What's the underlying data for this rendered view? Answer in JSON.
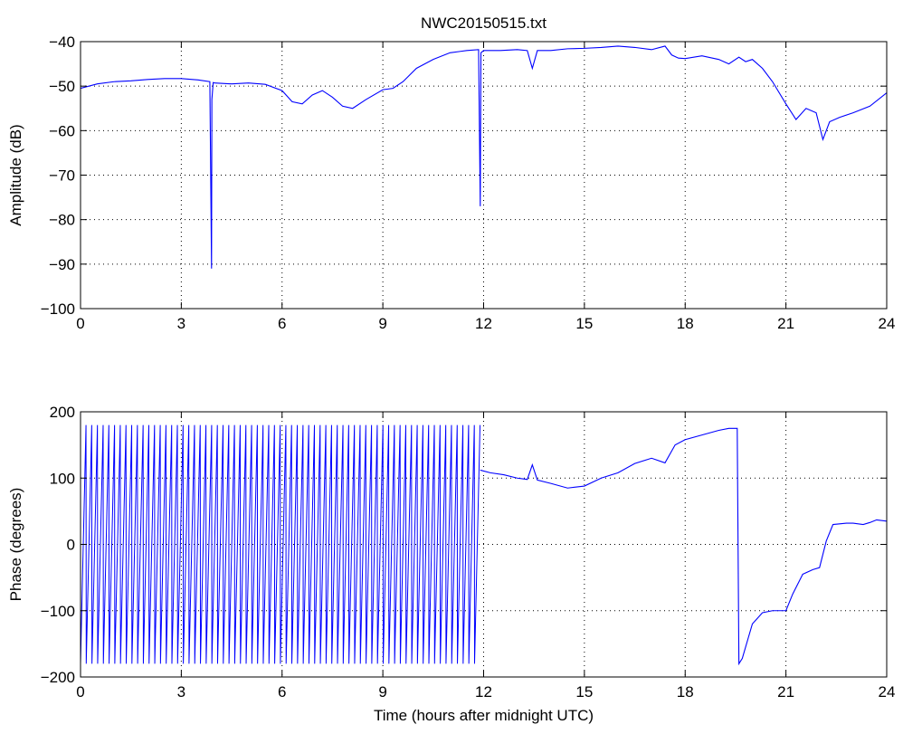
{
  "chart_data": [
    {
      "type": "line",
      "title": "NWC20150515.txt",
      "xlabel": "",
      "ylabel": "Amplitude (dB)",
      "xlim": [
        0,
        24
      ],
      "ylim": [
        -100,
        -40
      ],
      "xticks": [
        0,
        3,
        6,
        9,
        12,
        15,
        18,
        21,
        24
      ],
      "xtick_labels": [
        "0",
        "3",
        "6",
        "9",
        "12",
        "15",
        "18",
        "21",
        "24"
      ],
      "yticks": [
        -100,
        -90,
        -80,
        -70,
        -60,
        -50,
        -40
      ],
      "ytick_labels": [
        "−100",
        "−90",
        "−80",
        "−70",
        "−60",
        "−50",
        "−40"
      ],
      "grid": true,
      "series": [
        {
          "color": "#0000ff",
          "x": [
            0,
            0.5,
            1,
            1.5,
            2,
            2.5,
            3,
            3.5,
            3.85,
            3.9,
            3.91,
            3.95,
            4,
            4.5,
            5,
            5.5,
            6,
            6.3,
            6.6,
            6.9,
            7.2,
            7.5,
            7.8,
            8.1,
            8.5,
            9,
            9.3,
            9.6,
            10,
            10.5,
            11,
            11.5,
            11.85,
            11.9,
            11.92,
            12,
            12.5,
            13,
            13.3,
            13.45,
            13.6,
            14,
            14.5,
            15,
            15.5,
            16,
            16.5,
            17,
            17.4,
            17.6,
            17.8,
            18,
            18.5,
            19,
            19.3,
            19.6,
            19.8,
            20,
            20.3,
            20.6,
            21,
            21.3,
            21.6,
            21.9,
            22.1,
            22.3,
            22.6,
            23,
            23.5,
            24
          ],
          "y": [
            -50.5,
            -49.5,
            -49,
            -48.8,
            -48.5,
            -48.3,
            -48.3,
            -48.6,
            -49,
            -91,
            -53,
            -49.2,
            -49.3,
            -49.5,
            -49.3,
            -49.6,
            -51,
            -53.5,
            -54,
            -52,
            -51,
            -52.5,
            -54.5,
            -55,
            -53,
            -50.8,
            -50.5,
            -49,
            -46,
            -44,
            -42.5,
            -42,
            -41.8,
            -77,
            -42.5,
            -42,
            -42,
            -41.8,
            -42,
            -46,
            -42,
            -42,
            -41.6,
            -41.5,
            -41.3,
            -41,
            -41.3,
            -41.8,
            -41,
            -43,
            -43.7,
            -43.8,
            -43.2,
            -44,
            -45,
            -43.5,
            -44.5,
            -44,
            -46,
            -49,
            -54,
            -57.5,
            -55,
            -56,
            -62,
            -58,
            -57,
            -56,
            -54.5,
            -51.5
          ]
        }
      ]
    },
    {
      "type": "line",
      "title": "",
      "xlabel": "Time (hours after midnight UTC)",
      "ylabel": "Phase (degrees)",
      "xlim": [
        0,
        24
      ],
      "ylim": [
        -200,
        200
      ],
      "xticks": [
        0,
        3,
        6,
        9,
        12,
        15,
        18,
        21,
        24
      ],
      "xtick_labels": [
        "0",
        "3",
        "6",
        "9",
        "12",
        "15",
        "18",
        "21",
        "24"
      ],
      "yticks": [
        -200,
        -100,
        0,
        100,
        200
      ],
      "ytick_labels": [
        "−200",
        "−100",
        "0",
        "100",
        "200"
      ],
      "grid": true,
      "wrapped_segment": {
        "x_start": 0,
        "x_end": 11.9,
        "cycles": 70,
        "min": -180,
        "max": 180
      },
      "series": [
        {
          "color": "#0000ff",
          "x": [
            11.9,
            12.2,
            12.6,
            13,
            13.3,
            13.45,
            13.6,
            14,
            14.5,
            15,
            15.5,
            16,
            16.5,
            17,
            17.4,
            17.7,
            18,
            18.5,
            19,
            19.3,
            19.55,
            19.6,
            19.7,
            20,
            20.3,
            20.6,
            21,
            21.2,
            21.5,
            21.8,
            22,
            22.2,
            22.4,
            22.8,
            23,
            23.3,
            23.5,
            23.7,
            24
          ],
          "y": [
            112,
            108,
            105,
            100,
            98,
            120,
            97,
            92,
            85,
            88,
            100,
            108,
            122,
            130,
            123,
            150,
            158,
            165,
            172,
            175,
            175,
            -180,
            -172,
            -120,
            -103,
            -100,
            -100,
            -75,
            -45,
            -38,
            -35,
            5,
            30,
            32,
            32,
            30,
            33,
            37,
            35
          ]
        }
      ]
    }
  ]
}
